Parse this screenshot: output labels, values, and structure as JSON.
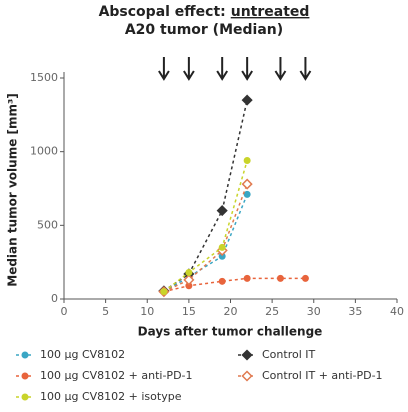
{
  "chart_data": {
    "type": "line",
    "title": "Abscopal effect:",
    "title_emphasis": "untreated",
    "subtitle": "A20 tumor (Median)",
    "x_label": "Days after tumor challenge",
    "y_label": "Median tumor volume [mm³]",
    "xlim": [
      0,
      40
    ],
    "xticks": [
      0,
      5,
      10,
      15,
      20,
      25,
      30,
      35,
      40
    ],
    "ylim": [
      0,
      1500
    ],
    "yticks": [
      0,
      500,
      1000,
      1500
    ],
    "treatment_days": [
      12,
      15,
      19,
      22,
      26,
      29
    ],
    "series": [
      {
        "name": "100 µg CV8102",
        "color": "#3aa6c4",
        "marker": "circle",
        "x": [
          12,
          15,
          19,
          22
        ],
        "values": [
          50,
          150,
          290,
          710
        ]
      },
      {
        "name": "Control IT",
        "color": "#333333",
        "marker": "diamond",
        "x": [
          12,
          15,
          19,
          22
        ],
        "values": [
          55,
          170,
          600,
          1350
        ]
      },
      {
        "name": "100 µg CV8102 + anti-PD-1",
        "color": "#e8643c",
        "marker": "circle",
        "x": [
          12,
          15,
          19,
          22,
          26,
          29
        ],
        "values": [
          50,
          90,
          120,
          140,
          140,
          140
        ]
      },
      {
        "name": "Control IT + anti-PD-1",
        "color": "#e07a50",
        "marker": "open-diamond",
        "x": [
          12,
          15,
          19,
          22
        ],
        "values": [
          50,
          130,
          330,
          780
        ]
      },
      {
        "name": "100 µg CV8102 + isotype",
        "color": "#c9d42a",
        "marker": "circle",
        "x": [
          12,
          15,
          19,
          22
        ],
        "values": [
          50,
          180,
          350,
          940
        ]
      }
    ]
  }
}
